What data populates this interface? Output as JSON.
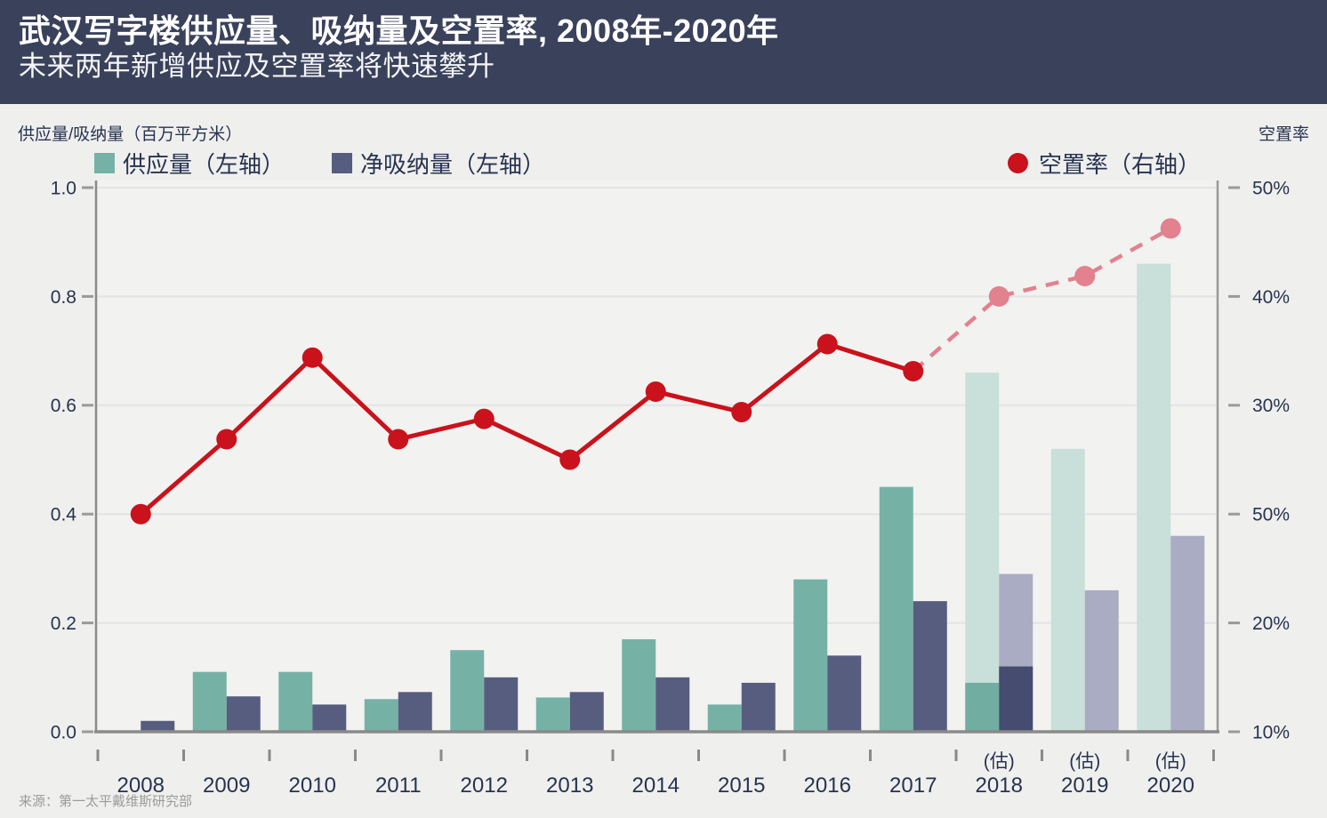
{
  "header": {
    "title": "武汉写字楼供应量、吸纳量及空置率, 2008年-2020年",
    "subtitle": "未来两年新增供应及空置率将快速攀升"
  },
  "axes": {
    "left_unit": "供应量/吸纳量（百万平方米）",
    "right_unit": "空置率",
    "left_ticks": [
      "1.0",
      "0.8",
      "0.6",
      "0.4",
      "0.2",
      "0.0"
    ],
    "right_ticks": [
      "50%",
      "40%",
      "30%",
      "50%",
      "20%",
      "10%"
    ]
  },
  "legend": {
    "supply": "供应量（左轴）",
    "absorption": "净吸纳量（左轴）",
    "vacancy": "空置率（右轴）"
  },
  "source": "来源：第一太平戴维斯研究部",
  "colors": {
    "header_bg": "#3A415B",
    "page_bg": "#EFEFEE",
    "plot_bg": "#F2F2F1",
    "grid": "#E3E3E4",
    "axis": "#8A8A8A",
    "tick": "#9A9A9A",
    "text": "#273350",
    "teal": "#76B1A6",
    "teal_light": "#C9DFD9",
    "teal_solid_est": "#72ADA1",
    "slate": "#575D7F",
    "slate_light": "#A9ACC3",
    "slate_dark": "#454C70",
    "red": "#C9121B",
    "pink": "#E1828E",
    "source_fg": "#9B9B9B"
  },
  "chart_data": {
    "type": "combo: grouped bar (left axis) + line (right axis)",
    "title": "武汉写字楼供应量、吸纳量及空置率, 2008年-2020年",
    "categories": [
      "2008",
      "2009",
      "2010",
      "2011",
      "2012",
      "2013",
      "2014",
      "2015",
      "2016",
      "2017",
      "2018",
      "2019",
      "2020"
    ],
    "estimated_categories": [
      "2018",
      "2019",
      "2020"
    ],
    "estimate_label": "(估)",
    "grid": true,
    "legend_position": "top",
    "left_axis": {
      "label": "供应量/吸纳量（百万平方米）",
      "range": [
        0.0,
        1.0
      ],
      "ticks": [
        1.0,
        0.8,
        0.6,
        0.4,
        0.2,
        0.0
      ]
    },
    "right_axis": {
      "label": "空置率",
      "tick_labels_top_to_bottom": [
        "50%",
        "40%",
        "30%",
        "50%",
        "20%",
        "10%"
      ],
      "range_pct": [
        10,
        50
      ]
    },
    "series": [
      {
        "name": "供应量（左轴）",
        "type": "bar",
        "axis": "left",
        "values": [
          0,
          0.11,
          0.11,
          0.06,
          0.15,
          0.063,
          0.17,
          0.05,
          0.28,
          0.45,
          0.66,
          0.52,
          0.86
        ],
        "completed": [
          0,
          0.11,
          0.11,
          0.06,
          0.15,
          0.063,
          0.17,
          0.05,
          0.28,
          0.45,
          0.09,
          0,
          0
        ]
      },
      {
        "name": "净吸纳量（左轴）",
        "type": "bar",
        "axis": "left",
        "values": [
          0.02,
          0.065,
          0.05,
          0.073,
          0.1,
          0.073,
          0.1,
          0.09,
          0.14,
          0.24,
          0.29,
          0.26,
          0.36
        ],
        "completed": [
          0.02,
          0.065,
          0.05,
          0.073,
          0.1,
          0.073,
          0.1,
          0.09,
          0.14,
          0.24,
          0.12,
          0,
          0
        ]
      },
      {
        "name": "空置率（右轴）",
        "type": "line",
        "axis": "right",
        "unit": "%",
        "values": [
          26,
          31.5,
          37.5,
          31.5,
          33,
          30,
          35,
          33.5,
          38.5,
          36.5,
          42,
          43.5,
          47
        ],
        "solid_through": "2017",
        "dashed_from": "2017"
      }
    ]
  }
}
